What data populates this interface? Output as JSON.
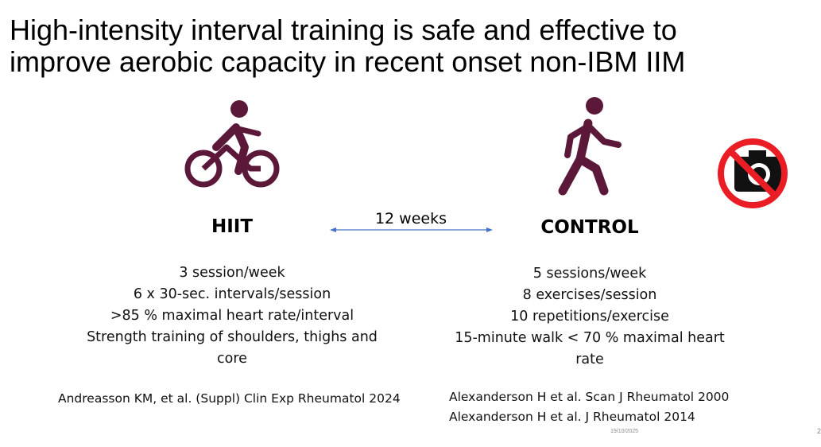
{
  "title": [
    "High-intensity interval training is safe and effective to",
    "improve aerobic capacity in recent onset non-IBM IIM"
  ],
  "duration": "12 weeks",
  "hiit": {
    "label": "HIIT",
    "items": [
      "3 session/week",
      "6 x 30-sec. intervals/session",
      ">85 % maximal heart rate/interval",
      "Strength training of shoulders, thighs and core"
    ],
    "references": [
      "Andreasson KM, et al. (Suppl) Clin Exp Rheumatol 2024"
    ]
  },
  "control": {
    "label": "CONTROL",
    "items": [
      "5 sessions/week",
      "8 exercises/session",
      "10 repetitions/exercise",
      "15-minute walk < 70 % maximal heart rate"
    ],
    "references": [
      "Alexanderson H et al. Scan J Rheumatol 2000",
      "Alexanderson H et al. J Rheumatol 2014"
    ]
  },
  "footer": {
    "date": "19/10/2025",
    "slide_number": "2"
  }
}
